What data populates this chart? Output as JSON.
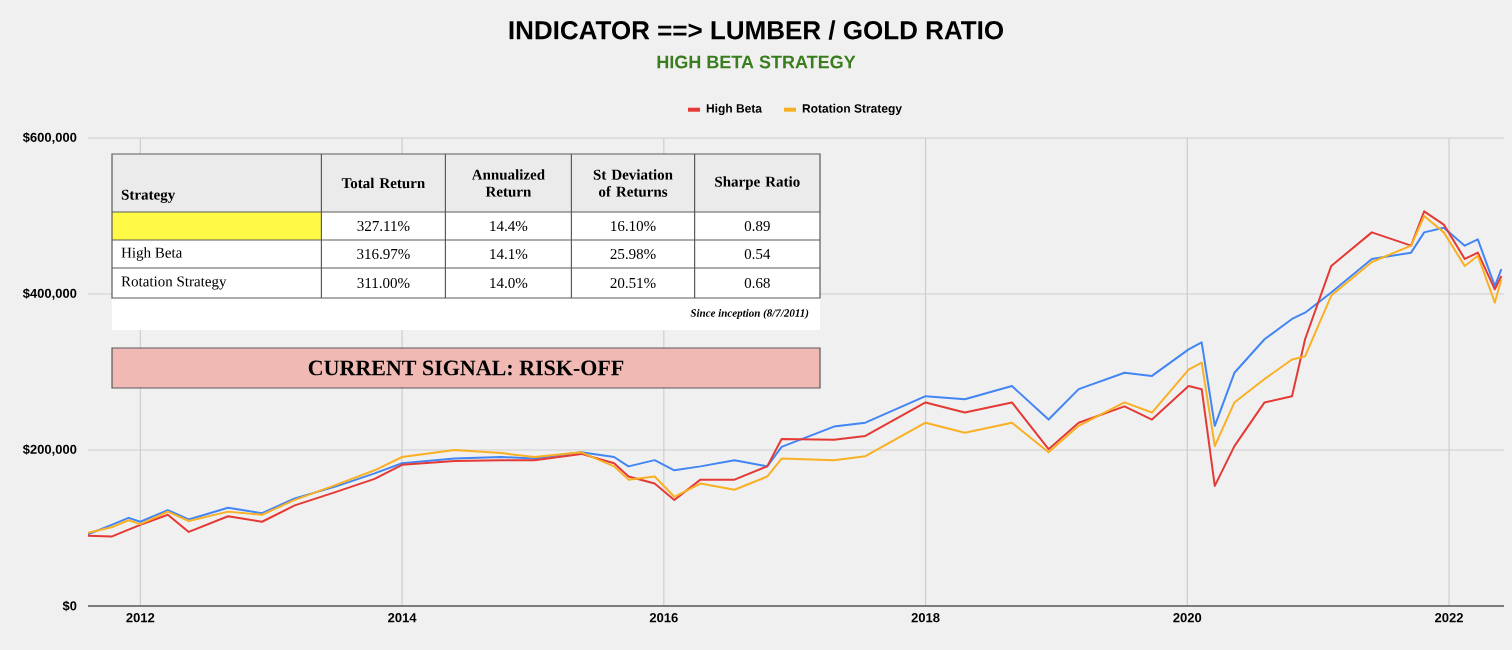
{
  "chart_data": {
    "type": "line",
    "title": "INDICATOR ==> LUMBER / GOLD RATIO",
    "subtitle": "HIGH BETA STRATEGY",
    "x": [
      2011.6,
      2011.78,
      2011.91,
      2012.0,
      2012.21,
      2012.37,
      2012.67,
      2012.93,
      2013.18,
      2013.49,
      2013.79,
      2014.0,
      2014.4,
      2014.76,
      2015.01,
      2015.37,
      2015.62,
      2015.73,
      2015.93,
      2016.08,
      2016.28,
      2016.54,
      2016.79,
      2016.9,
      2017.3,
      2017.54,
      2018.0,
      2018.3,
      2018.66,
      2018.94,
      2019.17,
      2019.52,
      2019.73,
      2020.01,
      2020.11,
      2020.21,
      2020.36,
      2020.59,
      2020.8,
      2020.9,
      2021.1,
      2021.41,
      2021.71,
      2021.81,
      2021.96,
      2022.12,
      2022.22,
      2022.35,
      2022.4
    ],
    "series": [
      {
        "color": "#4285f4",
        "values": [
          92000,
          104000,
          113000,
          108000,
          123000,
          111000,
          126000,
          119000,
          138000,
          153000,
          170000,
          183000,
          189000,
          191000,
          189000,
          197000,
          191000,
          179000,
          187000,
          174000,
          179000,
          187000,
          179000,
          204000,
          230000,
          235000,
          269000,
          265000,
          282000,
          239000,
          278000,
          299000,
          295000,
          329000,
          338000,
          231000,
          299000,
          342000,
          368000,
          376000,
          402000,
          445000,
          453000,
          479000,
          485000,
          462000,
          470000,
          410000,
          432000
        ]
      },
      {
        "name": "High Beta",
        "color": "#e53935",
        "values": [
          90000,
          89000,
          98000,
          104000,
          117000,
          95000,
          115000,
          108000,
          129000,
          146000,
          163000,
          181000,
          186000,
          187000,
          187000,
          195000,
          183000,
          166000,
          157000,
          136000,
          162000,
          162000,
          179000,
          214000,
          213000,
          218000,
          261000,
          248000,
          261000,
          201000,
          235000,
          256000,
          239000,
          282000,
          278000,
          154000,
          205000,
          261000,
          269000,
          342000,
          436000,
          479000,
          462000,
          506000,
          489000,
          445000,
          453000,
          406000,
          423000
        ]
      },
      {
        "name": "Rotation Strategy",
        "color": "#f9b023",
        "values": [
          94000,
          101000,
          110000,
          105000,
          121000,
          109000,
          121000,
          117000,
          136000,
          155000,
          174000,
          191000,
          200000,
          196000,
          191000,
          197000,
          179000,
          162000,
          166000,
          140000,
          157000,
          149000,
          166000,
          189000,
          187000,
          192000,
          235000,
          222000,
          235000,
          197000,
          231000,
          261000,
          248000,
          303000,
          312000,
          205000,
          261000,
          291000,
          316000,
          320000,
          398000,
          441000,
          462000,
          500000,
          479000,
          436000,
          449000,
          389000,
          419000
        ]
      }
    ],
    "xlim": [
      2011.6,
      2022.42
    ],
    "ylim": [
      0,
      600000
    ],
    "xticks": [
      2012,
      2014,
      2016,
      2018,
      2020,
      2022
    ],
    "yticks": [
      {
        "value": 0,
        "label": "$0"
      },
      {
        "value": 200000,
        "label": "$200,000"
      },
      {
        "value": 400000,
        "label": "$400,000"
      },
      {
        "value": 600000,
        "label": "$600,000"
      }
    ],
    "grid": true,
    "legend": "top",
    "marker": "none",
    "line_style": "solid",
    "annotations": [
      "Strategy",
      "Total Return",
      "Annualized Return",
      "St Deviation of Returns",
      "Sharpe Ratio",
      "327.11%",
      "14.4%",
      "16.10%",
      "0.89",
      "High Beta",
      "316.97%",
      "14.1%",
      "25.98%",
      "0.54",
      "Rotation Strategy",
      "311.00%",
      "14.0%",
      "20.51%",
      "0.68",
      "Since inception (8/7/2011)",
      "CURRENT SIGNAL: RISK-OFF"
    ]
  }
}
